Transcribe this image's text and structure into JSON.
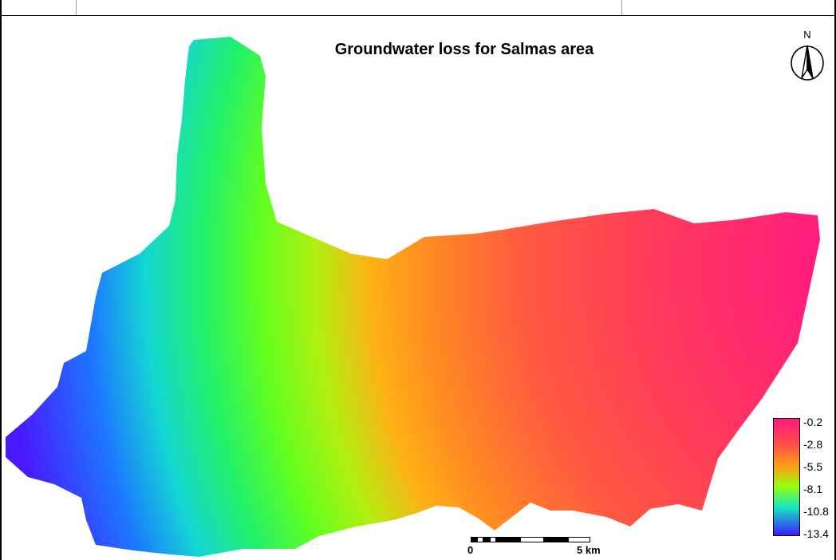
{
  "map": {
    "title": "Groundwater loss for Salmas area",
    "north_arrow": {
      "label": "N",
      "icon": "north-arrow-icon"
    },
    "legend": {
      "labels": [
        "-0.2",
        "-2.8",
        "-5.5",
        "-8.1",
        "-10.8",
        "-13.4"
      ],
      "colors": [
        "#ff1a80",
        "#ff4f4a",
        "#ff9a18",
        "#96ff10",
        "#18e6c0",
        "#3a1cff"
      ]
    },
    "scale_bar": {
      "start_label": "0",
      "end_label": "5 km"
    }
  }
}
